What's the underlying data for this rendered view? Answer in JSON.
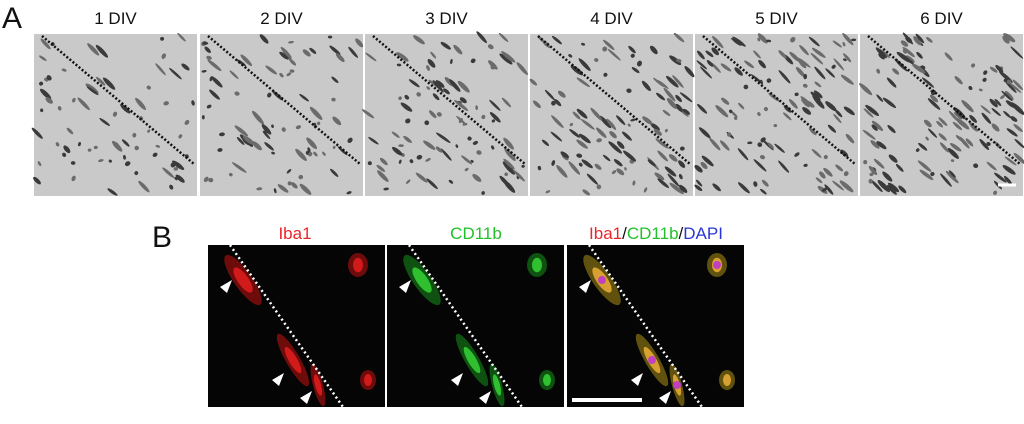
{
  "panel_a": {
    "label": "A",
    "images": [
      {
        "label": "1 DIV"
      },
      {
        "label": "2 DIV"
      },
      {
        "label": "3 DIV"
      },
      {
        "label": "4 DIV"
      },
      {
        "label": "5 DIV"
      },
      {
        "label": "6 DIV"
      }
    ]
  },
  "panel_b": {
    "label": "B",
    "images": [
      {
        "label": "Iba1"
      },
      {
        "label": "CD11b"
      },
      {
        "label_parts": [
          "Iba1",
          "/",
          "CD11b",
          "/",
          "DAPI"
        ]
      }
    ]
  }
}
